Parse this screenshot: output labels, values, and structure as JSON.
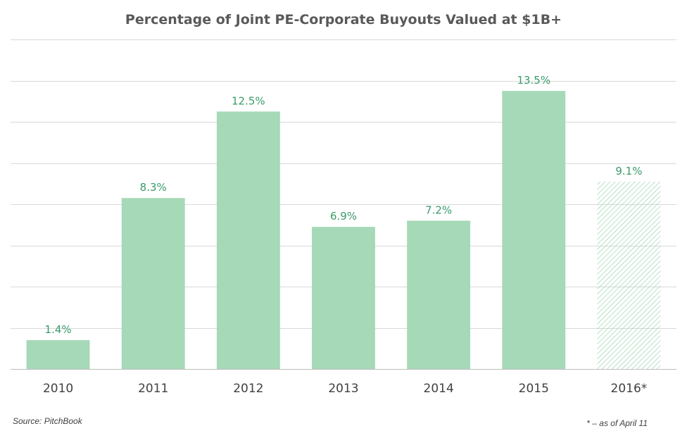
{
  "chart_data": {
    "type": "bar",
    "title": "Percentage of Joint PE-Corporate Buyouts Valued at $1B+",
    "categories": [
      "2010",
      "2011",
      "2012",
      "2013",
      "2014",
      "2015",
      "2016*"
    ],
    "values": [
      1.4,
      8.3,
      12.5,
      6.9,
      7.2,
      13.5,
      9.1
    ],
    "value_labels": [
      "1.4%",
      "8.3%",
      "12.5%",
      "6.9%",
      "7.2%",
      "13.5%",
      "9.1%"
    ],
    "hatched_categories": [
      "2016*"
    ],
    "ylim": [
      0,
      16
    ],
    "grid": true,
    "xlabel": "",
    "ylabel": "",
    "bar_color": "#a6d9b7",
    "label_color": "#3a9b6a"
  },
  "footer": {
    "source": "Source: PitchBook",
    "note": "* – as of April 11"
  }
}
